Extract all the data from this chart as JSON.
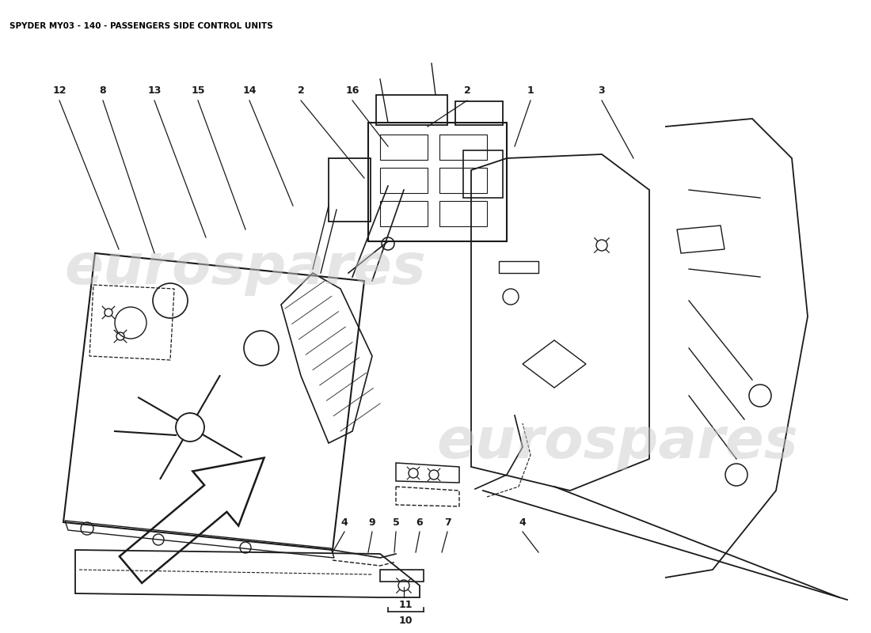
{
  "title": "SPYDER MY03 - 140 - PASSENGERS SIDE CONTROL UNITS",
  "title_fontsize": 7.5,
  "title_color": "#000000",
  "bg_color": "#ffffff",
  "line_color": "#1a1a1a",
  "watermark_text": "eurospares",
  "watermark_color": "#cccccc",
  "figsize": [
    11.0,
    8.0
  ],
  "dpi": 100
}
